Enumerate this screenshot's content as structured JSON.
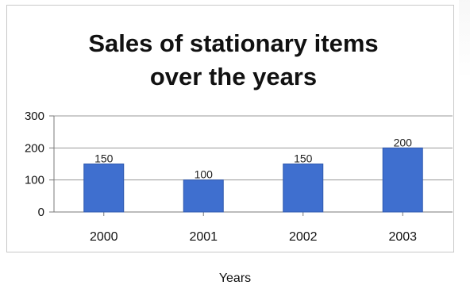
{
  "chart_data": {
    "type": "bar",
    "title_lines": [
      "Sales of stationary items",
      "over the years"
    ],
    "categories": [
      "2000",
      "2001",
      "2002",
      "2003"
    ],
    "values": [
      150,
      100,
      150,
      200
    ],
    "data_labels": [
      "150",
      "100",
      "150",
      "200"
    ],
    "xlabel": "Years",
    "ylabel": "",
    "ylim": [
      0,
      300
    ],
    "yticks": [
      "0",
      "100",
      "200",
      "300"
    ],
    "ytick_values": [
      0,
      100,
      200,
      300
    ],
    "grid": true,
    "legend": "none",
    "colors": {
      "bar": "#3f6fcf",
      "bar_edge": "#2f58ae",
      "grid": "#9a9a9a",
      "axis": "#7a7a7a"
    }
  }
}
